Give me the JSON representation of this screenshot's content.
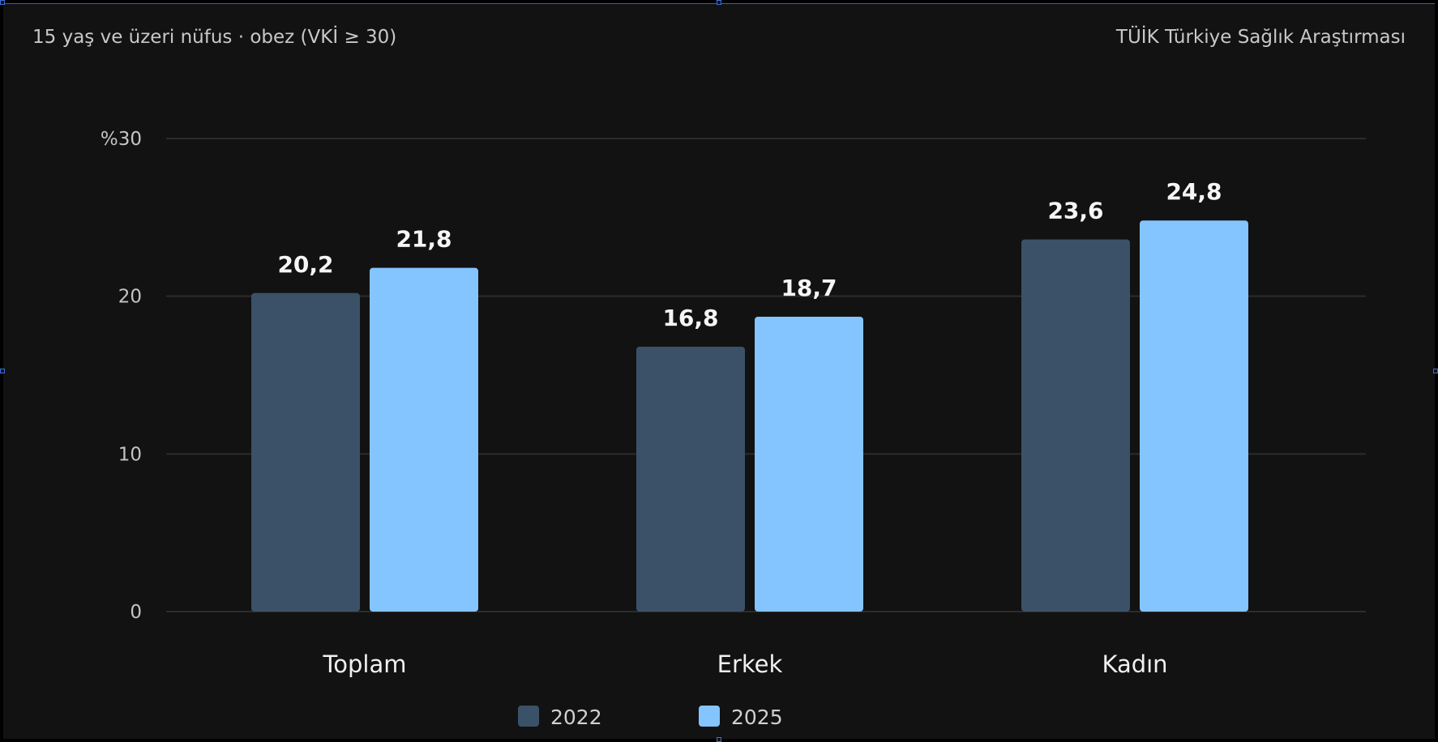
{
  "header": {
    "subtitle": "15 yaş ve üzeri nüfus · obez (VKİ ≥ 30)",
    "source": "TÜİK Türkiye Sağlık Araştırması"
  },
  "colors": {
    "series_2022": "#3b5167",
    "series_2025": "#84c4ff",
    "grid": "#2c2c2c"
  },
  "chart_data": {
    "type": "bar",
    "categories": [
      "Toplam",
      "Erkek",
      "Kadın"
    ],
    "series": [
      {
        "name": "2022",
        "values": [
          20.2,
          16.8,
          23.6
        ],
        "labels": [
          "20,2",
          "16,8",
          "23,6"
        ]
      },
      {
        "name": "2025",
        "values": [
          21.8,
          18.7,
          24.8
        ],
        "labels": [
          "21,8",
          "18,7",
          "24,8"
        ]
      }
    ],
    "y_ticks": [
      {
        "value": 0,
        "label": "0"
      },
      {
        "value": 10,
        "label": "10"
      },
      {
        "value": 20,
        "label": "20"
      },
      {
        "value": 30,
        "label": "%30"
      }
    ],
    "ylim": [
      0,
      30
    ],
    "grid": true,
    "legend_position": "bottom-center"
  }
}
